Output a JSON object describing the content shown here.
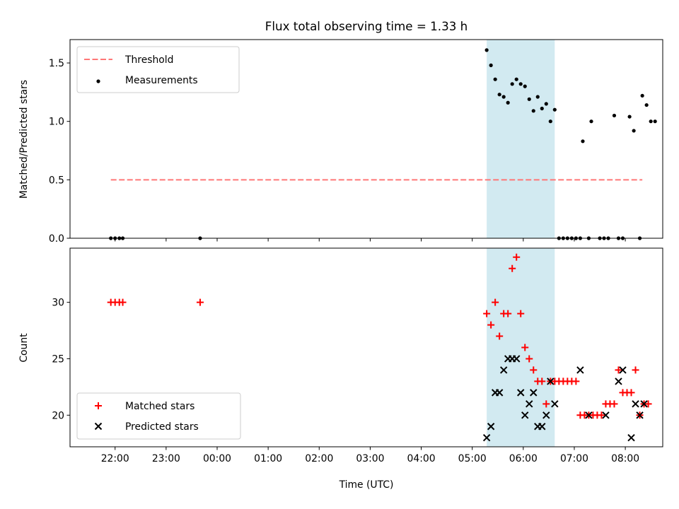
{
  "chart_data": [
    {
      "type": "scatter",
      "title": "Flux total observing time = 1.33 h",
      "ylabel": "Matched/Predicted stars",
      "xlabel": "",
      "ylim": [
        0,
        1.7
      ],
      "y_ticks": [
        0.0,
        0.5,
        1.0,
        1.5
      ],
      "y_tick_labels": [
        "0.0",
        "0.5",
        "1.0",
        "1.5"
      ],
      "x_ticks": [
        "21:55",
        "22:55",
        "23:55",
        "00:55",
        "01:55",
        "02:55",
        "03:55",
        "04:55",
        "05:55",
        "06:55",
        "07:55"
      ],
      "highlight": {
        "start": "05:12",
        "end": "06:32",
        "color": "#add8e6"
      },
      "legend": {
        "placement": "upper left",
        "entries": [
          {
            "label": "Threshold",
            "kind": "dashed-line",
            "color": "#ff7777"
          },
          {
            "label": "Measurements",
            "kind": "dot",
            "color": "#000000"
          }
        ]
      },
      "series": [
        {
          "name": "Threshold",
          "kind": "dashed-line",
          "color": "#ff7777",
          "points": [
            [
              "21:50",
              0.5
            ],
            [
              "08:15",
              0.5
            ]
          ]
        },
        {
          "name": "Measurements",
          "kind": "dot",
          "color": "#000000",
          "points": [
            [
              "21:50",
              0.0
            ],
            [
              "21:55",
              0.0
            ],
            [
              "22:00",
              0.0
            ],
            [
              "22:04",
              0.0
            ],
            [
              "23:35",
              0.0
            ],
            [
              "05:12",
              1.61
            ],
            [
              "05:17",
              1.48
            ],
            [
              "05:22",
              1.36
            ],
            [
              "05:27",
              1.23
            ],
            [
              "05:32",
              1.21
            ],
            [
              "05:37",
              1.16
            ],
            [
              "05:42",
              1.32
            ],
            [
              "05:47",
              1.36
            ],
            [
              "05:52",
              1.32
            ],
            [
              "05:57",
              1.3
            ],
            [
              "06:02",
              1.19
            ],
            [
              "06:07",
              1.09
            ],
            [
              "06:12",
              1.21
            ],
            [
              "06:17",
              1.11
            ],
            [
              "06:22",
              1.15
            ],
            [
              "06:27",
              1.0
            ],
            [
              "06:32",
              1.1
            ],
            [
              "06:37",
              0.0
            ],
            [
              "06:42",
              0.0
            ],
            [
              "06:47",
              0.0
            ],
            [
              "06:52",
              0.0
            ],
            [
              "06:57",
              0.0
            ],
            [
              "07:02",
              0.0
            ],
            [
              "07:05",
              0.83
            ],
            [
              "07:12",
              0.0
            ],
            [
              "07:15",
              1.0
            ],
            [
              "07:25",
              0.0
            ],
            [
              "07:30",
              0.0
            ],
            [
              "07:35",
              0.0
            ],
            [
              "07:42",
              1.05
            ],
            [
              "07:47",
              0.0
            ],
            [
              "07:52",
              0.0
            ],
            [
              "08:00",
              1.04
            ],
            [
              "08:05",
              0.92
            ],
            [
              "08:12",
              0.0
            ],
            [
              "08:15",
              1.22
            ],
            [
              "08:20",
              1.14
            ],
            [
              "08:25",
              1.0
            ],
            [
              "08:30",
              1.0
            ]
          ]
        }
      ]
    },
    {
      "type": "scatter",
      "title": "",
      "xlabel": "Time (UTC)",
      "ylabel": "Count",
      "ylim": [
        17.2,
        34.8
      ],
      "y_ticks": [
        20,
        25,
        30
      ],
      "y_tick_labels": [
        "20",
        "25",
        "30"
      ],
      "x_ticks": [
        "21:55",
        "22:55",
        "23:55",
        "00:55",
        "01:55",
        "02:55",
        "03:55",
        "04:55",
        "05:55",
        "06:55",
        "07:55"
      ],
      "x_tick_labels": [
        "22:00",
        "23:00",
        "00:00",
        "01:00",
        "02:00",
        "03:00",
        "04:00",
        "05:00",
        "06:00",
        "07:00",
        "08:00"
      ],
      "highlight": {
        "start": "05:12",
        "end": "06:32",
        "color": "#add8e6"
      },
      "legend": {
        "placement": "lower left",
        "entries": [
          {
            "label": "Matched stars",
            "kind": "plus",
            "color": "#ff0000"
          },
          {
            "label": "Predicted stars",
            "kind": "x",
            "color": "#000000"
          }
        ]
      },
      "series": [
        {
          "name": "Matched stars",
          "kind": "plus",
          "color": "#ff0000",
          "points": [
            [
              "21:50",
              30
            ],
            [
              "21:55",
              30
            ],
            [
              "22:00",
              30
            ],
            [
              "22:04",
              30
            ],
            [
              "23:35",
              30
            ],
            [
              "05:12",
              29
            ],
            [
              "05:17",
              28
            ],
            [
              "05:22",
              30
            ],
            [
              "05:27",
              27
            ],
            [
              "05:32",
              29
            ],
            [
              "05:37",
              29
            ],
            [
              "05:42",
              33
            ],
            [
              "05:47",
              34
            ],
            [
              "05:52",
              29
            ],
            [
              "05:57",
              26
            ],
            [
              "06:02",
              25
            ],
            [
              "06:07",
              24
            ],
            [
              "06:12",
              23
            ],
            [
              "06:17",
              23
            ],
            [
              "06:22",
              21
            ],
            [
              "06:27",
              23
            ],
            [
              "06:32",
              23
            ],
            [
              "06:37",
              23
            ],
            [
              "06:42",
              23
            ],
            [
              "06:47",
              23
            ],
            [
              "06:52",
              23
            ],
            [
              "06:57",
              23
            ],
            [
              "07:02",
              20
            ],
            [
              "07:07",
              20
            ],
            [
              "07:12",
              20
            ],
            [
              "07:17",
              20
            ],
            [
              "07:22",
              20
            ],
            [
              "07:27",
              20
            ],
            [
              "07:32",
              21
            ],
            [
              "07:37",
              21
            ],
            [
              "07:42",
              21
            ],
            [
              "07:47",
              24
            ],
            [
              "07:52",
              22
            ],
            [
              "07:57",
              22
            ],
            [
              "08:02",
              22
            ],
            [
              "08:07",
              24
            ],
            [
              "08:12",
              20
            ],
            [
              "08:17",
              21
            ],
            [
              "08:22",
              21
            ]
          ]
        },
        {
          "name": "Predicted stars",
          "kind": "x",
          "color": "#000000",
          "points": [
            [
              "05:12",
              18
            ],
            [
              "05:17",
              19
            ],
            [
              "05:22",
              22
            ],
            [
              "05:27",
              22
            ],
            [
              "05:32",
              24
            ],
            [
              "05:37",
              25
            ],
            [
              "05:42",
              25
            ],
            [
              "05:47",
              25
            ],
            [
              "05:52",
              22
            ],
            [
              "05:57",
              20
            ],
            [
              "06:02",
              21
            ],
            [
              "06:07",
              22
            ],
            [
              "06:12",
              19
            ],
            [
              "06:17",
              19
            ],
            [
              "06:22",
              20
            ],
            [
              "06:27",
              23
            ],
            [
              "06:32",
              21
            ],
            [
              "07:02",
              24
            ],
            [
              "07:12",
              20
            ],
            [
              "07:32",
              20
            ],
            [
              "07:47",
              23
            ],
            [
              "07:52",
              24
            ],
            [
              "08:02",
              18
            ],
            [
              "08:07",
              21
            ],
            [
              "08:12",
              20
            ],
            [
              "08:17",
              21
            ]
          ]
        }
      ]
    }
  ]
}
